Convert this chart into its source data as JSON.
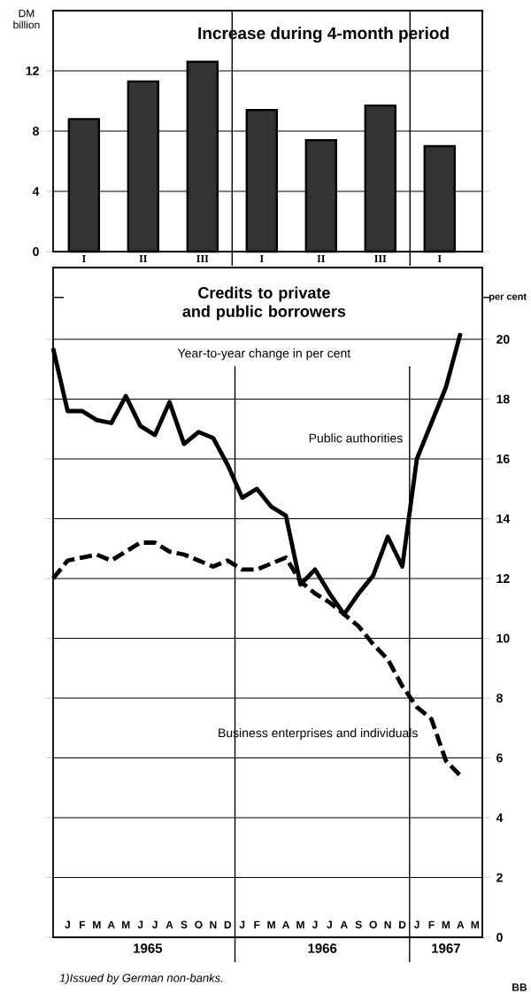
{
  "chart_data": [
    {
      "type": "bar",
      "title": "Increase during 4-month period",
      "ylabel": "DM billion",
      "categories": [
        "I",
        "II",
        "III",
        "I",
        "II",
        "III",
        "I"
      ],
      "values": [
        8.8,
        11.3,
        12.6,
        9.4,
        7.4,
        9.7,
        7.0
      ],
      "color": "#333333",
      "ylim": [
        0,
        16
      ],
      "yticks": [
        0,
        4,
        8,
        12
      ],
      "grid": "y"
    },
    {
      "type": "line",
      "title": "Credits to private and public borrowers",
      "subtitle": "Year-to-year change in per cent",
      "ylabel": "per cent",
      "categories": [
        null,
        "J",
        "F",
        "M",
        "A",
        "M",
        "J",
        "J",
        "A",
        "S",
        "O",
        "N",
        "D",
        "J",
        "F",
        "M",
        "A",
        "M",
        "J",
        "J",
        "A",
        "S",
        "O",
        "N",
        "D",
        "J",
        "F",
        "M",
        "A",
        "M"
      ],
      "series": [
        {
          "name": "Public authorities",
          "color": "#000000",
          "line_style": "solid",
          "values": [
            19.7,
            17.6,
            17.6,
            17.3,
            17.2,
            18.1,
            17.1,
            16.8,
            17.9,
            16.5,
            16.9,
            16.7,
            15.8,
            14.7,
            15.0,
            14.4,
            14.1,
            11.8,
            12.3,
            11.5,
            10.8,
            11.5,
            12.1,
            13.4,
            12.4,
            16.0,
            17.2,
            18.4,
            20.2,
            null
          ]
        },
        {
          "name": "Business enterprises and individuals",
          "color": "#000000",
          "line_style": "dashed",
          "values": [
            12.0,
            12.6,
            12.7,
            12.8,
            12.6,
            12.9,
            13.2,
            13.2,
            12.9,
            12.8,
            12.6,
            12.4,
            12.6,
            12.3,
            12.3,
            12.5,
            12.7,
            11.9,
            11.5,
            11.2,
            10.8,
            10.4,
            9.8,
            9.3,
            8.4,
            7.7,
            7.3,
            5.9,
            5.4,
            null
          ]
        }
      ],
      "ylim": [
        0,
        22.4
      ],
      "yticks": [
        0,
        2,
        4,
        6,
        8,
        10,
        12,
        14,
        16,
        18,
        20
      ],
      "grid": "y",
      "legend": false,
      "marker": "none",
      "annotations": [
        "1965",
        "1966",
        "1967",
        "1)Issued by German non-banks.",
        "BB"
      ]
    }
  ]
}
